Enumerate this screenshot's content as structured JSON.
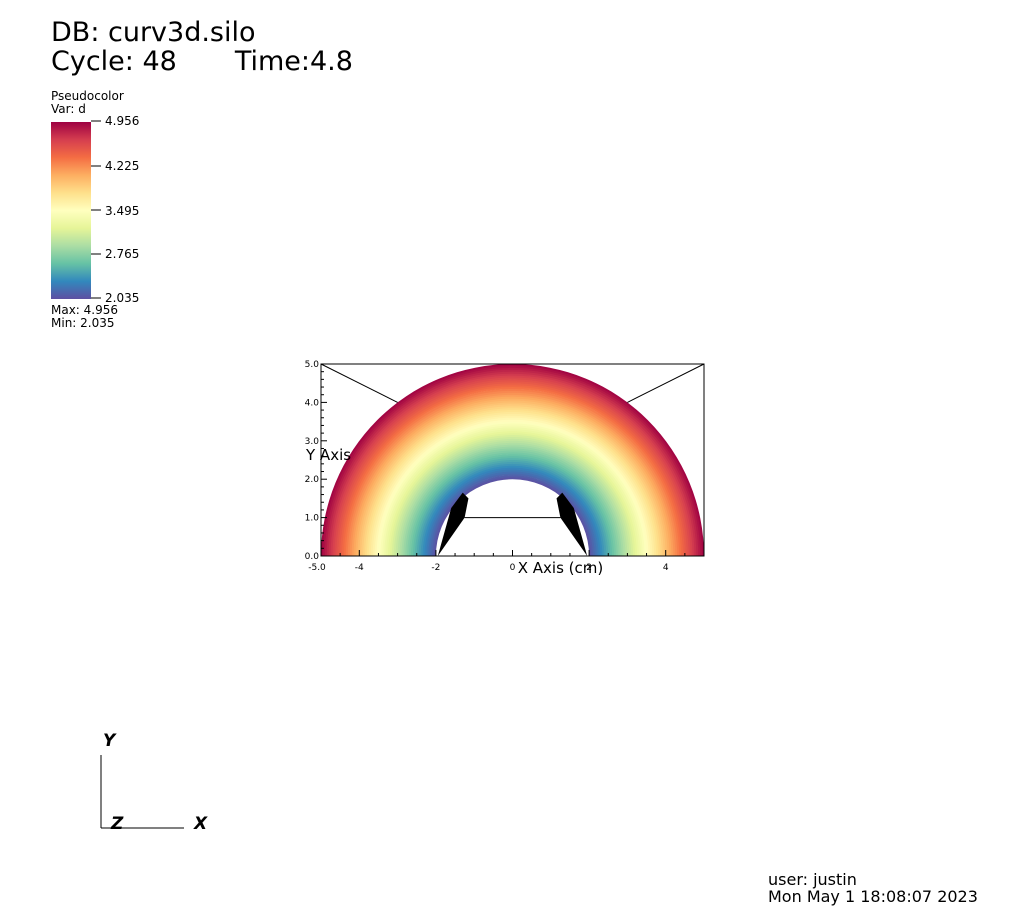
{
  "header": {
    "db": "DB: curv3d.silo",
    "cycle": "Cycle: 48",
    "time": "Time:4.8"
  },
  "legend": {
    "title": "Pseudocolor",
    "var": "Var: d",
    "ticks": [
      "4.956",
      "4.225",
      "3.495",
      "2.765",
      "2.035"
    ],
    "max": "Max:  4.956",
    "min": "Min:  2.035",
    "colormap": [
      "#5e4fa2",
      "#3288bd",
      "#66c2a5",
      "#abdda4",
      "#e6f598",
      "#ffffbf",
      "#fee08b",
      "#fdae61",
      "#f46d43",
      "#d53e4f",
      "#9e0142"
    ]
  },
  "plot": {
    "x_label": "X Axis (cm)",
    "y_label": "Y Axis",
    "x_ticks": [
      "-4",
      "-2",
      "0",
      "2",
      "4"
    ],
    "x_tick_values": [
      -4,
      -2,
      0,
      2,
      4
    ],
    "x_corner": "-5.0",
    "y_ticks": [
      "0.0",
      "1.0",
      "2.0",
      "3.0",
      "4.0",
      "5.0"
    ],
    "y_tick_values": [
      0,
      1,
      2,
      3,
      4,
      5
    ],
    "x_range": [
      -5,
      5
    ],
    "y_range": [
      0,
      5
    ],
    "inner_radius": 2.0,
    "outer_radius": 5.0,
    "value_range": [
      2.035,
      4.956
    ]
  },
  "triad": {
    "y": "Y",
    "z": "Z",
    "x": "X"
  },
  "footer": {
    "user": "user: justin",
    "date": "Mon May  1 18:08:07 2023"
  }
}
